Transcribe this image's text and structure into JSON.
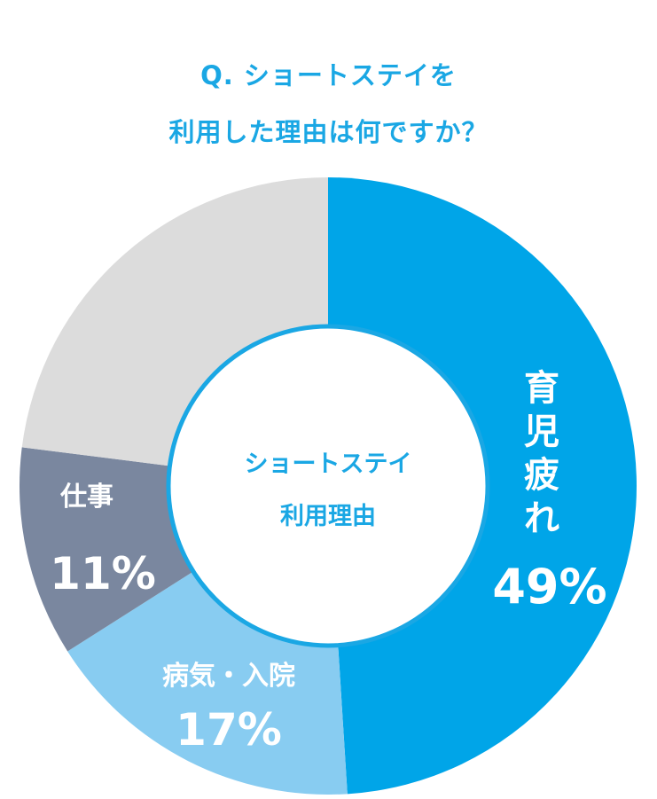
{
  "title_lines": [
    "Q. ショートステイを",
    "利用した理由は何ですか？"
  ],
  "center_label_lines": [
    "ショートステイ",
    "利用理由"
  ],
  "colors": {
    "title": "#1aa7e4",
    "ring_outline": "#1aa7e4"
  },
  "chart_data": {
    "type": "pie",
    "donut": true,
    "start_angle_deg": 0,
    "direction": "clockwise",
    "slices": [
      {
        "name": "育児疲れ",
        "value": 49,
        "label": "49%",
        "color": "#00a5e8"
      },
      {
        "name": "病気・入院",
        "value": 17,
        "label": "17%",
        "color": "#88ccf1"
      },
      {
        "name": "仕事",
        "value": 11,
        "label": "11%",
        "color": "#7a879f"
      },
      {
        "name": "",
        "value": 23,
        "label": "",
        "color": "#dcdcdc"
      }
    ]
  }
}
